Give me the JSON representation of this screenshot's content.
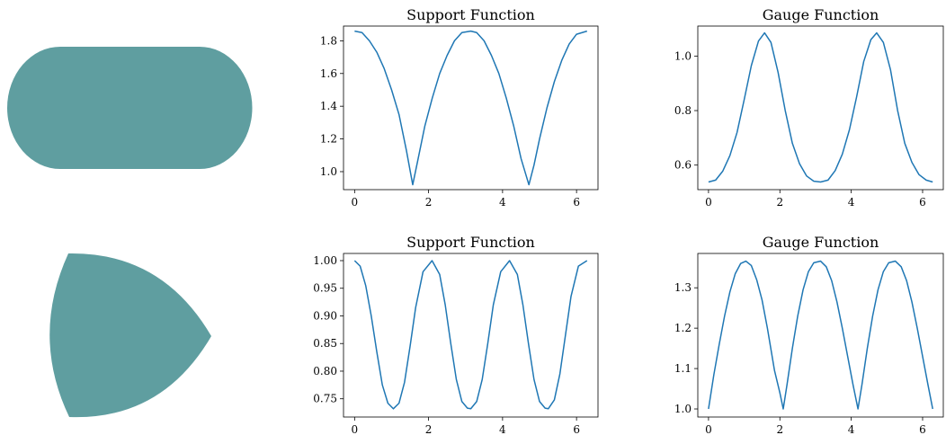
{
  "figure": {
    "shape_fill": "#5f9ea0",
    "line_color": "#1f77b4",
    "rows": [
      {
        "shape": "stadium",
        "shape_label": ""
      },
      {
        "shape": "reuleaux-like-wedge",
        "shape_label": ""
      }
    ]
  },
  "chart_data": [
    {
      "type": "line",
      "title": "Support Function",
      "xlabel": "",
      "ylabel": "",
      "xlim": [
        -0.3,
        6.58
      ],
      "ylim": [
        0.89,
        1.89
      ],
      "xticks": [
        0,
        2,
        4,
        6
      ],
      "yticks": [
        1.0,
        1.2,
        1.4,
        1.6,
        1.8
      ],
      "ytick_labels": [
        "1.0",
        "1.2",
        "1.4",
        "1.6",
        "1.8"
      ],
      "grid": false,
      "series": [
        {
          "x": [
            0,
            0.2,
            0.4,
            0.6,
            0.8,
            1.0,
            1.2,
            1.4,
            1.571,
            1.7,
            1.9,
            2.1,
            2.3,
            2.5,
            2.7,
            2.9,
            3.1416,
            3.3,
            3.5,
            3.7,
            3.9,
            4.1,
            4.3,
            4.5,
            4.712,
            4.85,
            5.0,
            5.2,
            5.4,
            5.6,
            5.8,
            6.0,
            6.283
          ],
          "y": [
            1.859,
            1.85,
            1.8,
            1.73,
            1.63,
            1.5,
            1.35,
            1.13,
            0.92,
            1.06,
            1.28,
            1.45,
            1.6,
            1.71,
            1.8,
            1.85,
            1.859,
            1.85,
            1.8,
            1.71,
            1.6,
            1.45,
            1.28,
            1.08,
            0.92,
            1.04,
            1.2,
            1.39,
            1.55,
            1.68,
            1.78,
            1.84,
            1.859
          ]
        }
      ]
    },
    {
      "type": "line",
      "title": "Gauge Function",
      "xlabel": "",
      "ylabel": "",
      "xlim": [
        -0.3,
        6.58
      ],
      "ylim": [
        0.51,
        1.11
      ],
      "xticks": [
        0,
        2,
        4,
        6
      ],
      "yticks": [
        0.6,
        0.8,
        1.0
      ],
      "ytick_labels": [
        "0.6",
        "0.8",
        "1.0"
      ],
      "grid": false,
      "series": [
        {
          "x": [
            0,
            0.2,
            0.4,
            0.6,
            0.8,
            1.0,
            1.2,
            1.4,
            1.571,
            1.75,
            1.95,
            2.15,
            2.35,
            2.55,
            2.75,
            2.95,
            3.1416,
            3.35,
            3.55,
            3.75,
            3.95,
            4.15,
            4.35,
            4.55,
            4.712,
            4.9,
            5.1,
            5.3,
            5.5,
            5.7,
            5.9,
            6.1,
            6.283
          ],
          "y": [
            0.538,
            0.545,
            0.578,
            0.635,
            0.72,
            0.84,
            0.965,
            1.055,
            1.085,
            1.05,
            0.94,
            0.8,
            0.68,
            0.605,
            0.56,
            0.541,
            0.538,
            0.545,
            0.58,
            0.64,
            0.73,
            0.85,
            0.98,
            1.06,
            1.085,
            1.05,
            0.95,
            0.8,
            0.68,
            0.61,
            0.565,
            0.545,
            0.538
          ]
        }
      ]
    },
    {
      "type": "line",
      "title": "Support Function",
      "xlabel": "",
      "ylabel": "",
      "xlim": [
        -0.3,
        6.58
      ],
      "ylim": [
        0.717,
        1.013
      ],
      "xticks": [
        0,
        2,
        4,
        6
      ],
      "yticks": [
        0.75,
        0.8,
        0.85,
        0.9,
        0.95,
        1.0
      ],
      "ytick_labels": [
        "0.75",
        "0.80",
        "0.85",
        "0.90",
        "0.95",
        "1.00"
      ],
      "grid": false,
      "series": [
        {
          "x": [
            0,
            0.15,
            0.3,
            0.45,
            0.6,
            0.75,
            0.9,
            1.047,
            1.2,
            1.35,
            1.5,
            1.65,
            1.85,
            2.094,
            2.3,
            2.45,
            2.6,
            2.75,
            2.9,
            3.05,
            3.1416,
            3.3,
            3.45,
            3.6,
            3.75,
            3.95,
            4.189,
            4.4,
            4.55,
            4.7,
            4.85,
            5.0,
            5.15,
            5.236,
            5.4,
            5.55,
            5.7,
            5.85,
            6.05,
            6.283
          ],
          "y": [
            1.0,
            0.99,
            0.955,
            0.9,
            0.835,
            0.775,
            0.742,
            0.732,
            0.742,
            0.78,
            0.845,
            0.915,
            0.98,
            1.0,
            0.975,
            0.92,
            0.85,
            0.785,
            0.745,
            0.733,
            0.732,
            0.745,
            0.785,
            0.85,
            0.92,
            0.98,
            1.0,
            0.975,
            0.92,
            0.85,
            0.785,
            0.745,
            0.733,
            0.732,
            0.748,
            0.795,
            0.865,
            0.935,
            0.99,
            1.0
          ]
        }
      ]
    },
    {
      "type": "line",
      "title": "Gauge Function",
      "xlabel": "",
      "ylabel": "",
      "xlim": [
        -0.3,
        6.58
      ],
      "ylim": [
        0.98,
        1.385
      ],
      "xticks": [
        0,
        2,
        4,
        6
      ],
      "yticks": [
        1.0,
        1.1,
        1.2,
        1.3
      ],
      "ytick_labels": [
        "1.0",
        "1.1",
        "1.2",
        "1.3"
      ],
      "grid": false,
      "series": [
        {
          "x": [
            0,
            0.15,
            0.3,
            0.45,
            0.6,
            0.75,
            0.9,
            1.047,
            1.2,
            1.35,
            1.5,
            1.65,
            1.85,
            2.0,
            2.094,
            2.2,
            2.35,
            2.5,
            2.65,
            2.8,
            2.95,
            3.1416,
            3.3,
            3.45,
            3.6,
            3.75,
            3.9,
            4.05,
            4.189,
            4.3,
            4.45,
            4.6,
            4.75,
            4.9,
            5.05,
            5.236,
            5.4,
            5.55,
            5.7,
            5.85,
            6.0,
            6.15,
            6.283
          ],
          "y": [
            1.0,
            1.085,
            1.16,
            1.23,
            1.29,
            1.335,
            1.36,
            1.366,
            1.355,
            1.32,
            1.27,
            1.2,
            1.095,
            1.04,
            1.0,
            1.06,
            1.15,
            1.23,
            1.295,
            1.34,
            1.362,
            1.366,
            1.352,
            1.318,
            1.265,
            1.2,
            1.13,
            1.06,
            1.0,
            1.06,
            1.15,
            1.23,
            1.295,
            1.34,
            1.362,
            1.366,
            1.352,
            1.318,
            1.265,
            1.2,
            1.13,
            1.06,
            1.0
          ]
        }
      ]
    }
  ]
}
